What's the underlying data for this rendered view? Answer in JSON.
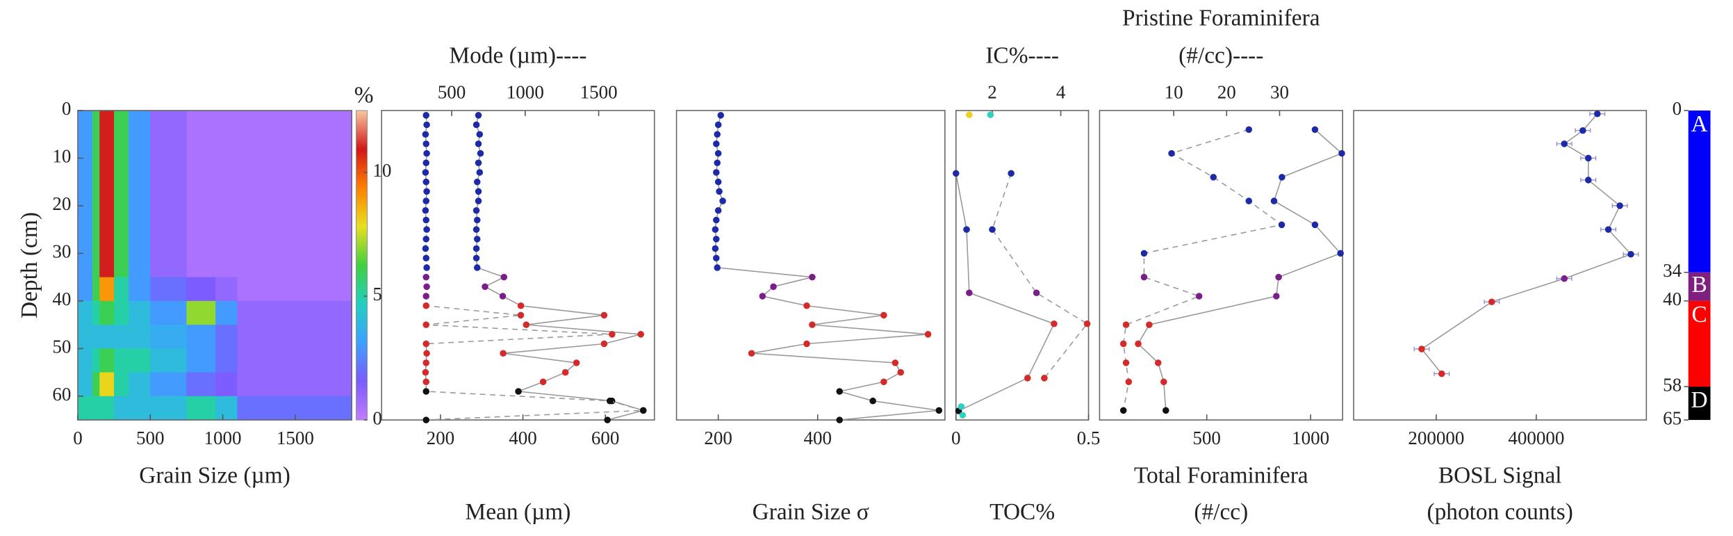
{
  "chart_data": [
    {
      "type": "heatmap",
      "xlabel": "Grain Size (µm)",
      "ylabel": "Depth (cm)",
      "xlim": [
        0,
        1890
      ],
      "xticks": [
        0,
        500,
        1000,
        1500
      ],
      "ylim": [
        0,
        65
      ],
      "yticks": [
        0,
        10,
        20,
        30,
        40,
        50,
        60
      ],
      "x_edges": [
        0,
        100,
        150,
        250,
        350,
        500,
        750,
        950,
        1100,
        1890
      ],
      "y_edges": [
        0,
        5,
        10,
        15,
        20,
        25,
        30,
        35,
        40,
        45,
        50,
        55,
        60,
        65
      ],
      "z": [
        [
          3,
          6,
          11,
          6,
          3,
          1,
          0.5,
          0.5,
          0.5
        ],
        [
          3,
          6,
          11,
          6,
          3,
          1,
          0.5,
          0.5,
          0.5
        ],
        [
          3,
          6,
          11,
          6,
          3,
          1,
          0.5,
          0.5,
          0.5
        ],
        [
          3,
          6,
          11,
          6,
          3,
          1,
          0.5,
          0.5,
          0.5
        ],
        [
          3,
          6,
          11,
          6,
          3,
          1,
          0.5,
          0.5,
          0.5
        ],
        [
          3,
          6,
          11,
          6,
          3,
          1,
          0.5,
          0.5,
          0.5
        ],
        [
          3,
          6,
          11,
          6,
          3,
          1,
          0.5,
          0.5,
          0.5
        ],
        [
          3,
          6,
          9,
          5,
          3,
          2,
          1.5,
          1,
          0.5
        ],
        [
          4,
          5,
          6,
          5,
          4,
          3,
          7,
          3,
          1
        ],
        [
          4,
          4,
          4,
          4,
          4,
          3.5,
          3,
          2,
          1
        ],
        [
          4,
          5,
          6,
          5,
          5,
          4,
          3,
          2,
          1
        ],
        [
          4,
          6,
          8,
          5,
          4,
          3,
          2,
          1.5,
          1
        ],
        [
          5,
          5,
          5,
          4,
          4,
          4,
          5,
          4,
          2
        ]
      ],
      "colorbar": {
        "label": "%",
        "lim": [
          0,
          12.5
        ],
        "ticks": [
          0,
          5,
          10
        ],
        "colors": [
          "#c07cff",
          "#7a5cff",
          "#3fa0ff",
          "#20d0c0",
          "#40d040",
          "#e8e020",
          "#ff8000",
          "#d01818",
          "#f8c8a0"
        ]
      }
    },
    {
      "type": "scatter",
      "xlabel": "Mean (µm)",
      "x2label": "Mode (µm)----",
      "xlim": [
        57,
        719
      ],
      "xticks": [
        200,
        400,
        600
      ],
      "x2lim": [
        23,
        1879
      ],
      "x2ticks": [
        500,
        1000,
        1500
      ],
      "ylim": [
        0,
        65
      ],
      "series": [
        {
          "axis": "x",
          "line": "solid",
          "line_color": "#999",
          "x": [
            292,
            287,
            295,
            292,
            297,
            292,
            295,
            289,
            292,
            292,
            287,
            289,
            287,
            289,
            287,
            287,
            289,
            354,
            308,
            351,
            395,
            597,
            408,
            686,
            597,
            352,
            530,
            503,
            449,
            389,
            616,
            692,
            605
          ],
          "y": [
            1,
            3,
            5,
            7,
            9,
            11,
            13,
            15,
            17,
            19,
            21,
            23,
            25,
            27,
            29,
            31,
            33,
            35,
            37,
            39,
            41,
            43,
            45,
            47,
            49,
            51,
            53,
            55,
            57,
            59,
            61,
            63,
            65
          ]
        },
        {
          "axis": "x2",
          "line": "dashed",
          "line_color": "#999",
          "x": [
            326,
            330,
            322,
            326,
            330,
            326,
            322,
            326,
            330,
            326,
            322,
            326,
            330,
            326,
            322,
            326,
            330,
            326,
            330,
            326,
            326,
            970,
            326,
            1591,
            326,
            330,
            326,
            322,
            326,
            326,
            1576,
            1803,
            326
          ],
          "y": [
            1,
            3,
            5,
            7,
            9,
            11,
            13,
            15,
            17,
            19,
            21,
            23,
            25,
            27,
            29,
            31,
            33,
            35,
            37,
            39,
            41,
            43,
            45,
            47,
            49,
            51,
            53,
            55,
            57,
            59,
            61,
            63,
            65
          ]
        }
      ]
    },
    {
      "type": "scatter",
      "xlabel": "Grain Size σ",
      "xlim": [
        116,
        656
      ],
      "xticks": [
        200,
        400
      ],
      "ylim": [
        0,
        65
      ],
      "series": [
        {
          "axis": "x",
          "line": "solid",
          "line_color": "#999",
          "x": [
            205,
            200,
            198,
            196,
            200,
            198,
            196,
            200,
            202,
            209,
            200,
            196,
            194,
            196,
            194,
            196,
            198,
            389,
            311,
            289,
            378,
            533,
            389,
            622,
            378,
            267,
            556,
            567,
            533,
            444,
            511,
            644,
            444
          ],
          "y": [
            1,
            3,
            5,
            7,
            9,
            11,
            13,
            15,
            17,
            19,
            21,
            23,
            25,
            27,
            29,
            31,
            33,
            35,
            37,
            39,
            41,
            43,
            45,
            47,
            49,
            51,
            53,
            55,
            57,
            59,
            61,
            63,
            65
          ]
        }
      ]
    },
    {
      "type": "scatter",
      "xlabel": "TOC%",
      "x2label": "IC%----",
      "xlim": [
        0,
        0.5
      ],
      "xticks": [
        0,
        0.5
      ],
      "x2lim": [
        0.94,
        4.81
      ],
      "x2ticks": [
        2,
        4
      ],
      "ylim": [
        0,
        65
      ],
      "series": [
        {
          "axis": "x",
          "line": "solid",
          "line_color": "#999",
          "x": [
            0,
            0.04,
            0.05,
            0.37,
            0.27,
            0.01
          ],
          "y": [
            13.2,
            25,
            38.3,
            44.8,
            56.2,
            63.1
          ]
        },
        {
          "axis": "x2",
          "line": "dashed",
          "line_color": "#999",
          "x": [
            2.55,
            2.0,
            3.29,
            4.77,
            3.52
          ],
          "y": [
            13.2,
            25,
            38.3,
            44.8,
            56.2
          ]
        },
        {
          "axis": "x",
          "line": "none",
          "x": [
            0.05,
            0.13,
            0.02,
            0.025
          ],
          "y": [
            0.9,
            0.9,
            62.2,
            64
          ],
          "colors": [
            "#f0d020",
            "#30d0c0",
            "#30d0c0",
            "#30d0c0"
          ]
        }
      ]
    },
    {
      "type": "scatter",
      "xlabel": [
        "Total Foraminifera",
        "(#/cc)"
      ],
      "x2label": [
        "Pristine Foraminifera",
        "(#/cc)----"
      ],
      "xlim": [
        -16,
        1154
      ],
      "xticks": [
        500,
        1000
      ],
      "x2lim": [
        -4,
        41.9
      ],
      "x2ticks": [
        10,
        20,
        30
      ],
      "ylim": [
        0,
        65
      ],
      "series": [
        {
          "axis": "x",
          "line": "solid",
          "line_color": "#999",
          "x": [
            1021,
            1150,
            862,
            824,
            1021,
            1144,
            846,
            835,
            223,
            170,
            266,
            293,
            303
          ],
          "y": [
            4,
            9,
            14,
            19,
            24,
            30,
            35,
            39,
            45,
            49,
            53,
            57,
            63
          ]
        },
        {
          "axis": "x2",
          "line": "dashed",
          "line_color": "#999",
          "x": [
            24.2,
            9.6,
            17.5,
            24.2,
            30.4,
            4.4,
            4.4,
            14.8,
            1.0,
            0.5,
            1.0,
            1.5,
            0.5
          ],
          "y": [
            4,
            9,
            14,
            19,
            24,
            30,
            35,
            39,
            45,
            49,
            53,
            57,
            63
          ]
        }
      ]
    },
    {
      "type": "scatter",
      "xlabel": [
        "BOSL Signal",
        "(photon counts)"
      ],
      "xlim": [
        35000,
        620000
      ],
      "xticks": [
        200000,
        400000
      ],
      "ylim": [
        0,
        65
      ],
      "series": [
        {
          "axis": "x",
          "line": "solid",
          "line_color": "#999",
          "x": [
            522000,
            493000,
            456000,
            504000,
            504000,
            567000,
            544000,
            589000,
            456000,
            311000,
            171000,
            211000
          ],
          "xerr": [
            15000,
            15000,
            15000,
            15000,
            15000,
            15000,
            15000,
            15000,
            15000,
            15000,
            15000,
            15000
          ],
          "y": [
            0.7,
            4.2,
            7,
            10,
            14.6,
            20,
            25,
            30.2,
            35.3,
            40.2,
            50.1,
            55.3
          ]
        }
      ]
    },
    {
      "type": "units",
      "ylim": [
        0,
        65
      ],
      "yticks": [
        0,
        34,
        40,
        58,
        65
      ],
      "units": [
        {
          "label": "A",
          "top": 0,
          "bottom": 34,
          "color": "#0000ff",
          "marker_color": "#1c2aa8"
        },
        {
          "label": "B",
          "top": 34,
          "bottom": 40,
          "color": "#7f2080",
          "marker_color": "#7a1f8a"
        },
        {
          "label": "C",
          "top": 40,
          "bottom": 58,
          "color": "#ff0000",
          "marker_color": "#d42a2a"
        },
        {
          "label": "D",
          "top": 58,
          "bottom": 65,
          "color": "#000000",
          "marker_color": "#111111"
        }
      ]
    }
  ]
}
